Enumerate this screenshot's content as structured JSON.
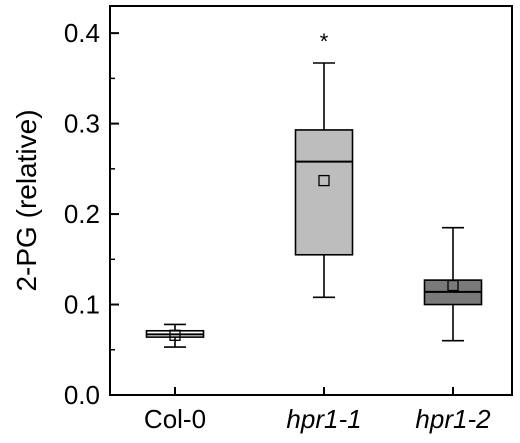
{
  "chart_data": {
    "type": "box",
    "ylabel": "2-PG (relative)",
    "ylim": [
      0,
      0.43
    ],
    "yticks": [
      0.0,
      0.1,
      0.2,
      0.3,
      0.4
    ],
    "ytick_labels": [
      "0.0",
      "0.1",
      "0.2",
      "0.3",
      "0.4"
    ],
    "grid": false,
    "categories": [
      "Col-0",
      "hpr1-1",
      "hpr1-2"
    ],
    "italic_categories": [
      false,
      true,
      true
    ],
    "boxes": [
      {
        "category": "Col-0",
        "whisker_low": 0.053,
        "q1": 0.064,
        "median": 0.067,
        "q3": 0.071,
        "whisker_high": 0.078,
        "mean": 0.066,
        "color": "#ffffff",
        "annotation": ""
      },
      {
        "category": "hpr1-1",
        "whisker_low": 0.108,
        "q1": 0.155,
        "median": 0.258,
        "q3": 0.293,
        "whisker_high": 0.367,
        "mean": 0.237,
        "color": "#bdbdbd",
        "annotation": "*"
      },
      {
        "category": "hpr1-2",
        "whisker_low": 0.06,
        "q1": 0.1,
        "median": 0.114,
        "q3": 0.127,
        "whisker_high": 0.185,
        "mean": 0.121,
        "color": "#7a7a7a",
        "annotation": ""
      }
    ]
  }
}
